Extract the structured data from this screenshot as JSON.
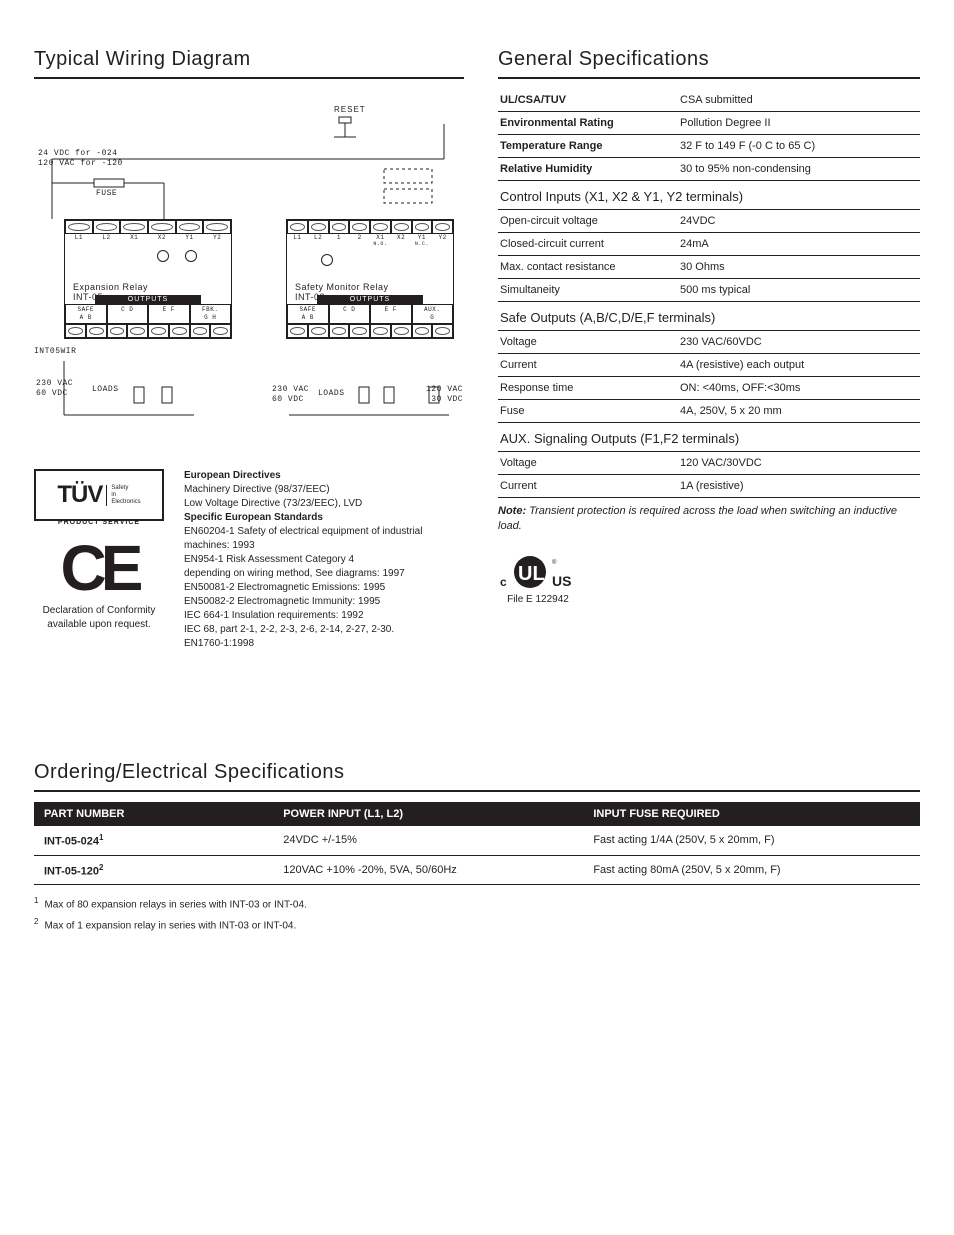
{
  "left": {
    "title": "Typical Wiring Diagram",
    "diagram": {
      "reset": "RESET",
      "supply_line1": "24 VDC for -024",
      "supply_line2": "120 VAC for -120",
      "fuse": "FUSE",
      "int05wir": "INT05WIR",
      "loads": "LOADS",
      "volt_lbl1": "230 VAC",
      "volt_lbl2": "60 VDC",
      "volt_lbl3": "120 VAC",
      "volt_lbl4": "30 VDC",
      "exp_title1": "Expansion Relay",
      "exp_title2": "INT-05",
      "mon_title1": "Safety Monitor Relay",
      "mon_title2": "INT-03",
      "outputs": "OUTPUTS",
      "exp_top": [
        "L1",
        "L2",
        "X1",
        "X2",
        "Y1",
        "Y2"
      ],
      "mon_top": [
        "L1",
        "L2",
        "1",
        "2",
        "X1",
        "X2",
        "Y1",
        "Y2"
      ],
      "mon_top_sub": [
        "",
        "",
        "",
        "",
        "N.O.",
        "",
        "N.C.",
        ""
      ],
      "exp_out_pairs": [
        [
          "SAFE",
          "A  B"
        ],
        [
          "",
          "C  D"
        ],
        [
          "",
          "E  F"
        ],
        [
          "FBK.",
          "G    H"
        ]
      ],
      "mon_out_pairs": [
        [
          "SAFE",
          "A  B"
        ],
        [
          "",
          "C  D"
        ],
        [
          "",
          "E  F"
        ],
        [
          "AUX.",
          "   G"
        ]
      ]
    },
    "cert": {
      "tuv_label": "PRODUCT SERVICE",
      "tuv_side1": "Safety",
      "tuv_side2": "in",
      "tuv_side3": "Electronics",
      "ce_note1": "Declaration of Conformity",
      "ce_note2": "available upon request.",
      "dir_title1": "European Directives",
      "dir_items1": [
        "Machinery Directive (98/37/EEC)",
        "Low Voltage Directive (73/23/EEC), LVD"
      ],
      "dir_title2": "Specific European Standards",
      "dir_items2": [
        "EN60204-1 Safety of electrical equipment of industrial machines: 1993",
        "EN954-1 Risk Assessment Category 4",
        "depending on wiring method, See diagrams: 1997",
        "EN50081-2 Electromagnetic Emissions: 1995",
        "EN50082-2 Electromagnetic Immunity: 1995",
        "IEC 664-1 Insulation requirements: 1992",
        "IEC 68, part 2-1, 2-2, 2-3, 2-6, 2-14, 2-27, 2-30.",
        "EN1760-1:1998"
      ]
    }
  },
  "right": {
    "title": "General Specifications",
    "rows_top": [
      {
        "k": "UL/CSA/TUV",
        "v": "CSA submitted",
        "strong": true
      },
      {
        "k": "Environmental Rating",
        "v": "Pollution Degree II",
        "strong": true
      },
      {
        "k": "Temperature Range",
        "v": "32  F to 149  F (-0  C to 65  C)",
        "strong": true
      },
      {
        "k": "Relative Humidity",
        "v": "30 to 95% non-condensing",
        "strong": true
      }
    ],
    "sub1": "Control Inputs (X1, X2 & Y1, Y2 terminals)",
    "rows1": [
      {
        "k": "Open-circuit voltage",
        "v": "24VDC"
      },
      {
        "k": "Closed-circuit current",
        "v": "24mA"
      },
      {
        "k": "Max. contact resistance",
        "v": "30 Ohms"
      },
      {
        "k": "Simultaneity",
        "v": "500 ms typical"
      }
    ],
    "sub2": "Safe Outputs (A,B/C,D/E,F terminals)",
    "rows2": [
      {
        "k": "Voltage",
        "v": "230 VAC/60VDC"
      },
      {
        "k": "Current",
        "v": "4A (resistive) each output"
      },
      {
        "k": "Response time",
        "v": "ON: <40ms, OFF:<30ms"
      },
      {
        "k": "Fuse",
        "v": "4A, 250V, 5 x 20 mm"
      }
    ],
    "sub3": "AUX. Signaling Outputs (F1,F2 terminals)",
    "rows3": [
      {
        "k": "Voltage",
        "v": "120 VAC/30VDC"
      },
      {
        "k": "Current",
        "v": "1A (resistive)"
      }
    ],
    "note_label": "Note:",
    "note": " Transient protection is required across the load when switching an inductive load.",
    "ul_file": "File E 122942"
  },
  "ordering": {
    "title": "Ordering/Electrical Specifications",
    "headers": [
      "PART NUMBER",
      "POWER INPUT (L1, L2)",
      "INPUT FUSE REQUIRED"
    ],
    "rows": [
      {
        "pn": "INT-05-024",
        "sup": "1",
        "pi": "24VDC +/-15%",
        "fuse": "Fast acting 1/4A (250V, 5 x 20mm, F)"
      },
      {
        "pn": "INT-05-120",
        "sup": "2",
        "pi": "120VAC +10% -20%, 5VA, 50/60Hz",
        "fuse": "Fast acting 80mA (250V, 5 x 20mm, F)"
      }
    ],
    "footnotes": [
      {
        "n": "1",
        "t": "Max of 80 expansion relays in series with INT-03 or INT-04."
      },
      {
        "n": "2",
        "t": "Max of 1 expansion relay in series with INT-03 or INT-04."
      }
    ]
  },
  "colors": {
    "ink": "#231f20",
    "bg": "#ffffff"
  }
}
